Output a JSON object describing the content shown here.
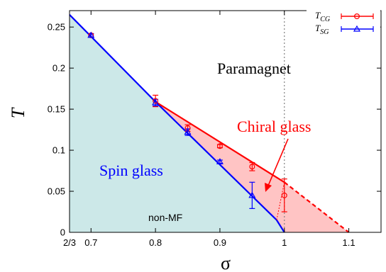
{
  "chart_data": {
    "type": "line",
    "xlabel": "σ",
    "ylabel": "T",
    "xlim": [
      0.6666667,
      1.15
    ],
    "ylim": [
      0,
      0.27
    ],
    "x_ticks": [
      {
        "value": 0.6666667,
        "label": "2/3"
      },
      {
        "value": 0.7,
        "label": "0.7"
      },
      {
        "value": 0.8,
        "label": "0.8"
      },
      {
        "value": 0.9,
        "label": "0.9"
      },
      {
        "value": 1.0,
        "label": "1"
      },
      {
        "value": 1.1,
        "label": "1.1"
      }
    ],
    "y_ticks": [
      {
        "value": 0,
        "label": "0"
      },
      {
        "value": 0.05,
        "label": "0.05"
      },
      {
        "value": 0.1,
        "label": "0.1"
      },
      {
        "value": 0.15,
        "label": "0.15"
      },
      {
        "value": 0.2,
        "label": "0.2"
      },
      {
        "value": 0.25,
        "label": "0.25"
      }
    ],
    "series": [
      {
        "name": "T_CG",
        "color": "#ff0000",
        "marker": "circle",
        "x": [
          0.7,
          0.8,
          0.85,
          0.9,
          0.95,
          1.0
        ],
        "y": [
          0.24,
          0.16,
          0.127,
          0.105,
          0.08,
          0.045
        ],
        "yerr": [
          0.002,
          0.007,
          0.004,
          0.002,
          0.005,
          0.02
        ]
      },
      {
        "name": "T_SG",
        "color": "#0000ff",
        "marker": "triangle",
        "x": [
          0.7,
          0.8,
          0.85,
          0.9,
          0.95
        ],
        "y": [
          0.24,
          0.158,
          0.122,
          0.086,
          0.045
        ],
        "yerr": [
          0.002,
          0.004,
          0.004,
          0.002,
          0.016
        ]
      }
    ],
    "boundaries": {
      "spin_glass_line": {
        "color": "#0000ff",
        "x": [
          0.6666667,
          0.8,
          0.988,
          1.0
        ],
        "y": [
          0.265,
          0.159,
          0.015,
          0
        ]
      },
      "chiral_glass_line": {
        "color": "#ff0000",
        "x": [
          0.8,
          1.0
        ],
        "y": [
          0.159,
          0.061
        ]
      },
      "chiral_glass_dashed": {
        "color": "#ff0000",
        "x": [
          1.0,
          1.1
        ],
        "y": [
          0.061,
          0
        ]
      },
      "dotted_inner": {
        "color": "#ff0000",
        "x": [
          0.988,
          1.0
        ],
        "y": [
          0.015,
          0.061
        ]
      },
      "vertical_reference": {
        "x": 1.0,
        "color": "#808080"
      }
    },
    "regions": {
      "spin_glass_fill": "#cce8e8",
      "chiral_glass_fill": "#ffc4c4"
    },
    "annotations": {
      "paramagnet": "Paramagnet",
      "chiral_glass": "Chiral glass",
      "spin_glass": "Spin glass",
      "non_mf": "non-MF"
    },
    "legend": {
      "placement": "top-right",
      "cg_main": "T",
      "cg_sub": "CG",
      "sg_main": "T",
      "sg_sub": "SG"
    },
    "grid": false
  }
}
